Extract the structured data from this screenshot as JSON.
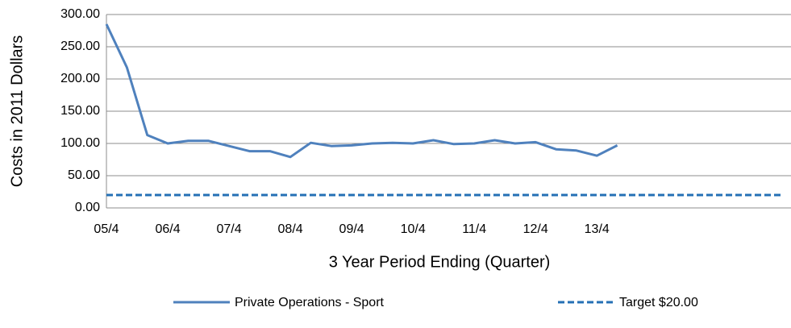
{
  "chart_data": {
    "type": "line",
    "x_label": "3 Year Period Ending (Quarter)",
    "y_label": "Costs in 2011 Dollars",
    "categories": [
      "05/4",
      null,
      null,
      "06/4",
      null,
      null,
      "07/4",
      null,
      null,
      "08/4",
      null,
      null,
      "09/4",
      null,
      null,
      "10/4",
      null,
      null,
      "11/4",
      null,
      null,
      "12/4",
      null,
      null,
      "13/4",
      null,
      null,
      null,
      null,
      null,
      null,
      null,
      null,
      null
    ],
    "series": [
      {
        "name": "Private Operations - Sport",
        "color": "#4f81bd",
        "dashed": false,
        "values": [
          285,
          218,
          113,
          100,
          104,
          104,
          96,
          88,
          88,
          79,
          101,
          96,
          97,
          100,
          101,
          100,
          105,
          99,
          100,
          105,
          100,
          102,
          91,
          89,
          81,
          97,
          null,
          null,
          null,
          null,
          null,
          null,
          null,
          null
        ]
      },
      {
        "name": "Target $20.00",
        "color": "#2570b5",
        "dashed": true,
        "values": [
          20,
          20,
          20,
          20,
          20,
          20,
          20,
          20,
          20,
          20,
          20,
          20,
          20,
          20,
          20,
          20,
          20,
          20,
          20,
          20,
          20,
          20,
          20,
          20,
          20,
          20,
          20,
          20,
          20,
          20,
          20,
          20,
          20,
          20
        ]
      }
    ],
    "ylim": [
      0,
      300
    ],
    "yticks": [
      {
        "value": 0,
        "label": "0.00"
      },
      {
        "value": 50,
        "label": "50.00"
      },
      {
        "value": 100,
        "label": "100.00"
      },
      {
        "value": 150,
        "label": "150.00"
      },
      {
        "value": 200,
        "label": "200.00"
      },
      {
        "value": 250,
        "label": "250.00"
      },
      {
        "value": 300,
        "label": "300.00"
      }
    ],
    "grid": true,
    "legend": "bottom"
  }
}
